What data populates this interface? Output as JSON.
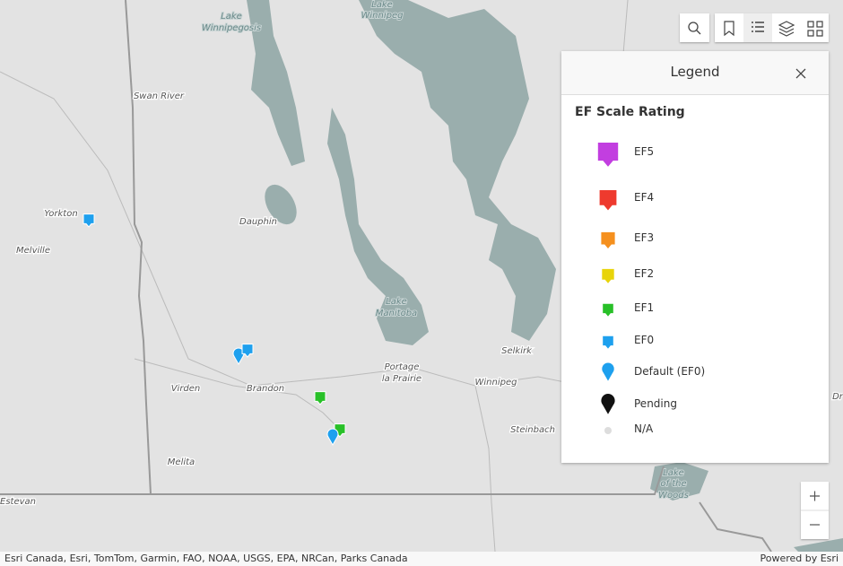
{
  "map": {
    "places": [
      {
        "lines": [
          "Lake",
          "Winnipegosis"
        ]
      },
      {
        "lines": [
          "Lake",
          "Winnipeg"
        ]
      },
      {
        "lines": [
          "Swan River"
        ]
      },
      {
        "lines": [
          "Yorkton"
        ]
      },
      {
        "lines": [
          "Melville"
        ]
      },
      {
        "lines": [
          "Dauphin"
        ]
      },
      {
        "lines": [
          "Lake",
          "Manitoba"
        ]
      },
      {
        "lines": [
          "Selkirk"
        ]
      },
      {
        "lines": [
          "Portage",
          "la Prairie"
        ]
      },
      {
        "lines": [
          "Winnipeg"
        ]
      },
      {
        "lines": [
          "Virden"
        ]
      },
      {
        "lines": [
          "Brandon"
        ]
      },
      {
        "lines": [
          "Steinbach"
        ]
      },
      {
        "lines": [
          "Melita"
        ]
      },
      {
        "lines": [
          "Estevan"
        ]
      },
      {
        "lines": [
          "Lake",
          "of the",
          "Woods"
        ]
      },
      {
        "lines": [
          "Dr"
        ]
      }
    ],
    "attribution": "Esri Canada, Esri, TomTom, Garmin, FAO, NOAA, USGS, EPA, NRCan, Parks Canada",
    "powered_by": "Powered by Esri"
  },
  "legend": {
    "title": "Legend",
    "layer_title": "EF Scale Rating",
    "items": [
      {
        "label": "EF5",
        "color": "#c23ee0"
      },
      {
        "label": "EF4",
        "color": "#ee3a2e"
      },
      {
        "label": "EF3",
        "color": "#f5901e"
      },
      {
        "label": "EF2",
        "color": "#e8d40a"
      },
      {
        "label": "EF1",
        "color": "#28c028"
      },
      {
        "label": "EF0",
        "color": "#1ea0ee"
      },
      {
        "label": "Default (EF0)",
        "color": "#1ea0ee"
      },
      {
        "label": "Pending",
        "color": "#111111"
      },
      {
        "label": "N/A",
        "color": "#dddddd"
      }
    ]
  }
}
